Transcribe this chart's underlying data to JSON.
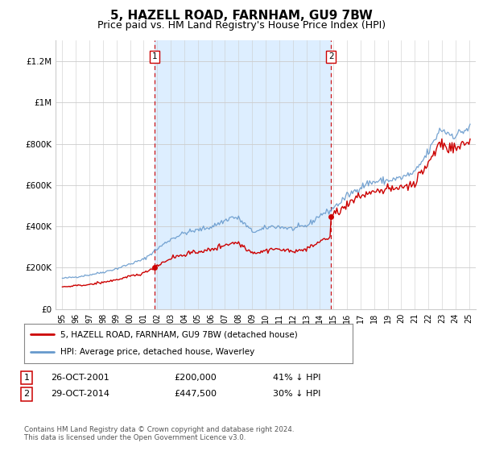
{
  "title": "5, HAZELL ROAD, FARNHAM, GU9 7BW",
  "subtitle": "Price paid vs. HM Land Registry's House Price Index (HPI)",
  "title_fontsize": 11,
  "subtitle_fontsize": 9,
  "background_color": "#ffffff",
  "plot_bg_color": "#ffffff",
  "highlight_bg_color": "#ddeeff",
  "sale1_year": 2001.82,
  "sale1_price": 200000,
  "sale2_year": 2014.83,
  "sale2_price": 447500,
  "ylim": [
    0,
    1300000
  ],
  "xlim": [
    1994.5,
    2025.5
  ],
  "yticks": [
    0,
    200000,
    400000,
    600000,
    800000,
    1000000,
    1200000
  ],
  "ytick_labels": [
    "£0",
    "£200K",
    "£400K",
    "£600K",
    "£800K",
    "£1M",
    "£1.2M"
  ],
  "xticks": [
    1995,
    1996,
    1997,
    1998,
    1999,
    2000,
    2001,
    2002,
    2003,
    2004,
    2005,
    2006,
    2007,
    2008,
    2009,
    2010,
    2011,
    2012,
    2013,
    2014,
    2015,
    2016,
    2017,
    2018,
    2019,
    2020,
    2021,
    2022,
    2023,
    2024,
    2025
  ],
  "xtick_labels": [
    "95",
    "96",
    "97",
    "98",
    "99",
    "00",
    "01",
    "02",
    "03",
    "04",
    "05",
    "06",
    "07",
    "08",
    "09",
    "10",
    "11",
    "12",
    "13",
    "14",
    "15",
    "16",
    "17",
    "18",
    "19",
    "20",
    "21",
    "22",
    "23",
    "24",
    "25"
  ],
  "red_line_color": "#cc0000",
  "blue_line_color": "#6699cc",
  "vline_color": "#cc0000",
  "legend_label_red": "5, HAZELL ROAD, FARNHAM, GU9 7BW (detached house)",
  "legend_label_blue": "HPI: Average price, detached house, Waverley",
  "footer": "Contains HM Land Registry data © Crown copyright and database right 2024.\nThis data is licensed under the Open Government Licence v3.0."
}
